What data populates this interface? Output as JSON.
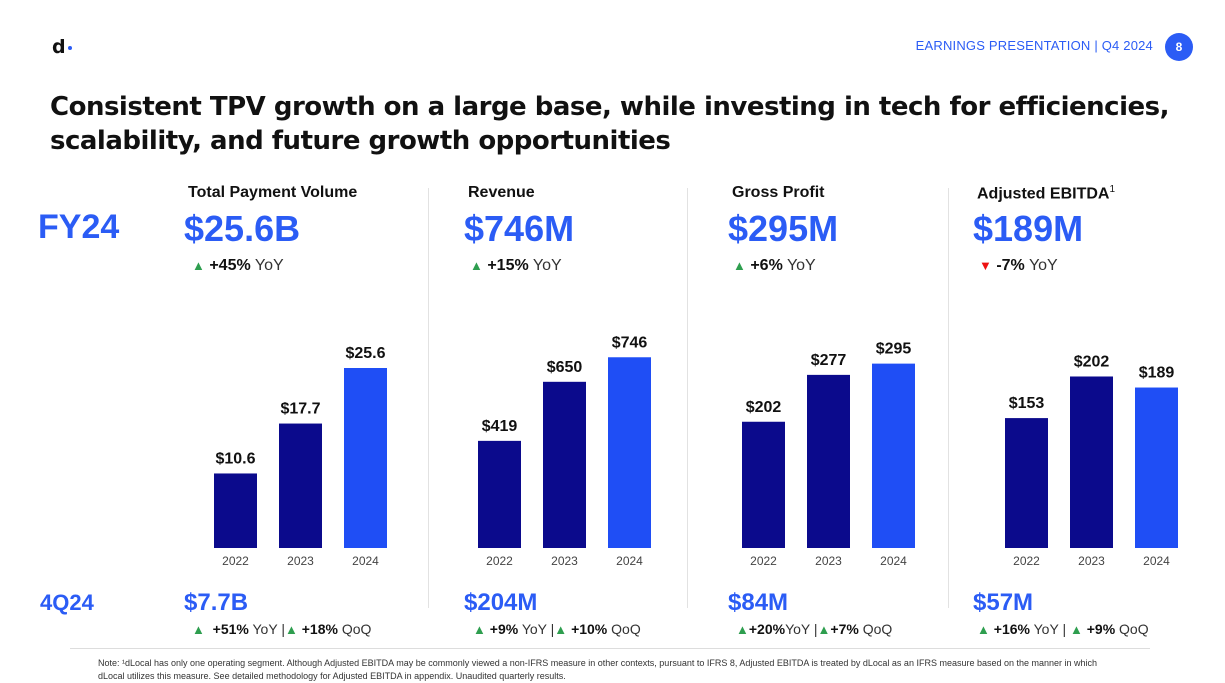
{
  "header": {
    "logo": "d",
    "label": "EARNINGS PRESENTATION | Q4 2024",
    "page_number": "8",
    "brand_color": "#2b5cf5"
  },
  "title": "Consistent TPV growth on a large base, while investing in tech for efficiencies, scalability, and future growth opportunities",
  "fy_label": "FY24",
  "q_label": "4Q24",
  "metrics": [
    {
      "name": "Total Payment Volume",
      "sup": "",
      "fy_value": "$25.6B",
      "yoy_dir": "▲",
      "yoy_pct": "+45%",
      "yoy_suffix": "YoY",
      "q_value": "$7.7B",
      "q_yoy": "+51%",
      "q_yoy_suffix": "YoY",
      "q_sep": "|",
      "q_qoq": "+18%",
      "q_qoq_suffix": "QoQ"
    },
    {
      "name": "Revenue",
      "sup": "",
      "fy_value": "$746M",
      "yoy_dir": "▲",
      "yoy_pct": "+15%",
      "yoy_suffix": "YoY",
      "q_value": "$204M",
      "q_yoy": "+9%",
      "q_yoy_suffix": "YoY",
      "q_sep": "|",
      "q_qoq": "+10%",
      "q_qoq_suffix": "QoQ"
    },
    {
      "name": "Gross Profit",
      "sup": "",
      "fy_value": "$295M",
      "yoy_dir": "▲",
      "yoy_pct": "+6%",
      "yoy_suffix": "YoY",
      "q_value": "$84M",
      "q_yoy": "+20%",
      "q_yoy_suffix": "YoY",
      "q_sep": "|",
      "q_qoq": "+7%",
      "q_qoq_suffix": "QoQ"
    },
    {
      "name": "Adjusted EBITDA",
      "sup": "1",
      "fy_value": "$189M",
      "yoy_dir": "▼",
      "yoy_pct": "-7%",
      "yoy_suffix": "YoY",
      "q_value": "$57M",
      "q_yoy": "+16%",
      "q_yoy_suffix": "YoY",
      "q_sep": "|",
      "q_qoq": "+9%",
      "q_qoq_suffix": "QoQ"
    }
  ],
  "chart_data": [
    {
      "type": "bar",
      "title": "Total Payment Volume",
      "categories": [
        "2022",
        "2023",
        "2024"
      ],
      "values": [
        10.6,
        17.7,
        25.6
      ],
      "labels": [
        "$10.6",
        "$17.7",
        "$25.6"
      ],
      "ylim": [
        0,
        32
      ],
      "colors": [
        "#0b0a8c",
        "#0b0a8c",
        "#1f4ef5"
      ]
    },
    {
      "type": "bar",
      "title": "Revenue",
      "categories": [
        "2022",
        "2023",
        "2024"
      ],
      "values": [
        419,
        650,
        746
      ],
      "labels": [
        "$419",
        "$650",
        "$746"
      ],
      "ylim": [
        0,
        880
      ],
      "colors": [
        "#0b0a8c",
        "#0b0a8c",
        "#1f4ef5"
      ]
    },
    {
      "type": "bar",
      "title": "Gross Profit",
      "categories": [
        "2022",
        "2023",
        "2024"
      ],
      "values": [
        202,
        277,
        295
      ],
      "labels": [
        "$202",
        "$277",
        "$295"
      ],
      "ylim": [
        0,
        360
      ],
      "colors": [
        "#0b0a8c",
        "#0b0a8c",
        "#1f4ef5"
      ]
    },
    {
      "type": "bar",
      "title": "Adjusted EBITDA",
      "categories": [
        "2022",
        "2023",
        "2024"
      ],
      "values": [
        153,
        202,
        189
      ],
      "labels": [
        "$153",
        "$202",
        "$189"
      ],
      "ylim": [
        0,
        265
      ],
      "colors": [
        "#0b0a8c",
        "#0b0a8c",
        "#1f4ef5"
      ]
    }
  ],
  "footnote": "Note: ¹dLocal has only one operating segment. Although Adjusted EBITDA may be commonly viewed a non-IFRS measure in other contexts, pursuant to IFRS 8, Adjusted EBITDA is treated by dLocal as an IFRS measure based on the manner in which dLocal utilizes this measure. See detailed methodology for Adjusted EBITDA in appendix. Unaudited quarterly results."
}
